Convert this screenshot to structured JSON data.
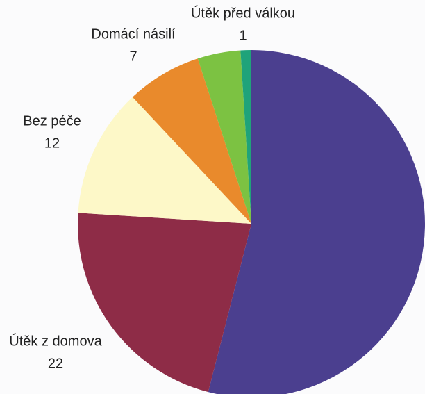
{
  "chart_data": {
    "type": "pie",
    "categories": [
      null,
      "Útěk z domova",
      "Bez péče",
      "Domácí násilí",
      null,
      "Útěk před válkou"
    ],
    "values": [
      54,
      22,
      12,
      7,
      4,
      1
    ],
    "colors": [
      "#4b3f8f",
      "#8e2c47",
      "#fdf8c8",
      "#e98a2c",
      "#7cc242",
      "#1fa37a"
    ]
  }
}
